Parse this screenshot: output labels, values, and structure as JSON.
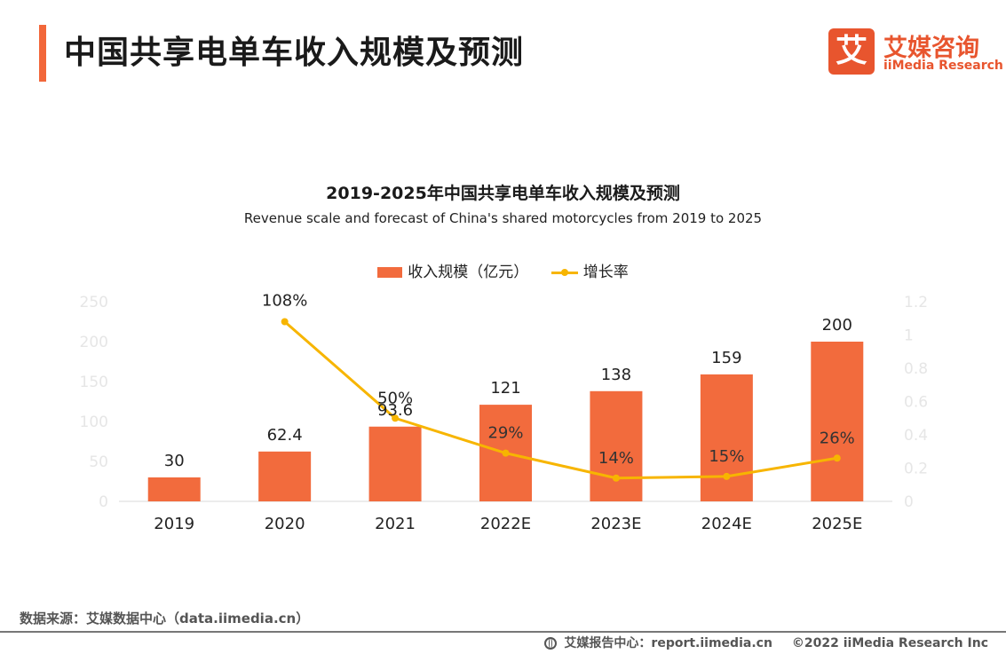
{
  "header": {
    "title": "中国共享电单车收入规模及预测"
  },
  "logo": {
    "mark": "艾",
    "name_cn": "艾媒咨询",
    "name_en": "iiMedia Research"
  },
  "chart_data": {
    "type": "bar",
    "title": "2019-2025年中国共享电单车收入规模及预测",
    "subtitle": "Revenue scale and forecast of China's shared motorcycles from 2019 to 2025",
    "categories": [
      "2019",
      "2020",
      "2021",
      "2022E",
      "2023E",
      "2024E",
      "2025E"
    ],
    "series": [
      {
        "name": "收入规模（亿元）",
        "type": "bar",
        "axis": "left",
        "values": [
          30,
          62.4,
          93.6,
          121,
          138,
          159,
          200
        ],
        "labels": [
          "30",
          "62.4",
          "93.6",
          "121",
          "138",
          "159",
          "200"
        ]
      },
      {
        "name": "增长率",
        "type": "line",
        "axis": "right",
        "values": [
          null,
          1.08,
          0.5,
          0.29,
          0.14,
          0.15,
          0.26
        ],
        "labels": [
          null,
          "108%",
          "50%",
          "29%",
          "14%",
          "15%",
          "26%"
        ]
      }
    ],
    "y_left": {
      "min": 0,
      "max": 250,
      "ticks": [
        "0",
        "50",
        "100",
        "150",
        "200",
        "250"
      ]
    },
    "y_right": {
      "min": 0,
      "max": 1.2,
      "ticks": [
        "0",
        "0.2",
        "0.4",
        "0.6",
        "0.8",
        "1",
        "1.2"
      ]
    },
    "legend_position": "top-center",
    "colors": {
      "bar": "#F26B3D",
      "line": "#F7B500",
      "axis_text": "#E6E6E6"
    }
  },
  "footer": {
    "source": "数据来源：艾媒数据中心（data.iimedia.cn）",
    "report": "艾媒报告中心：report.iimedia.cn",
    "copyright": "©2022  iiMedia Research  Inc"
  }
}
